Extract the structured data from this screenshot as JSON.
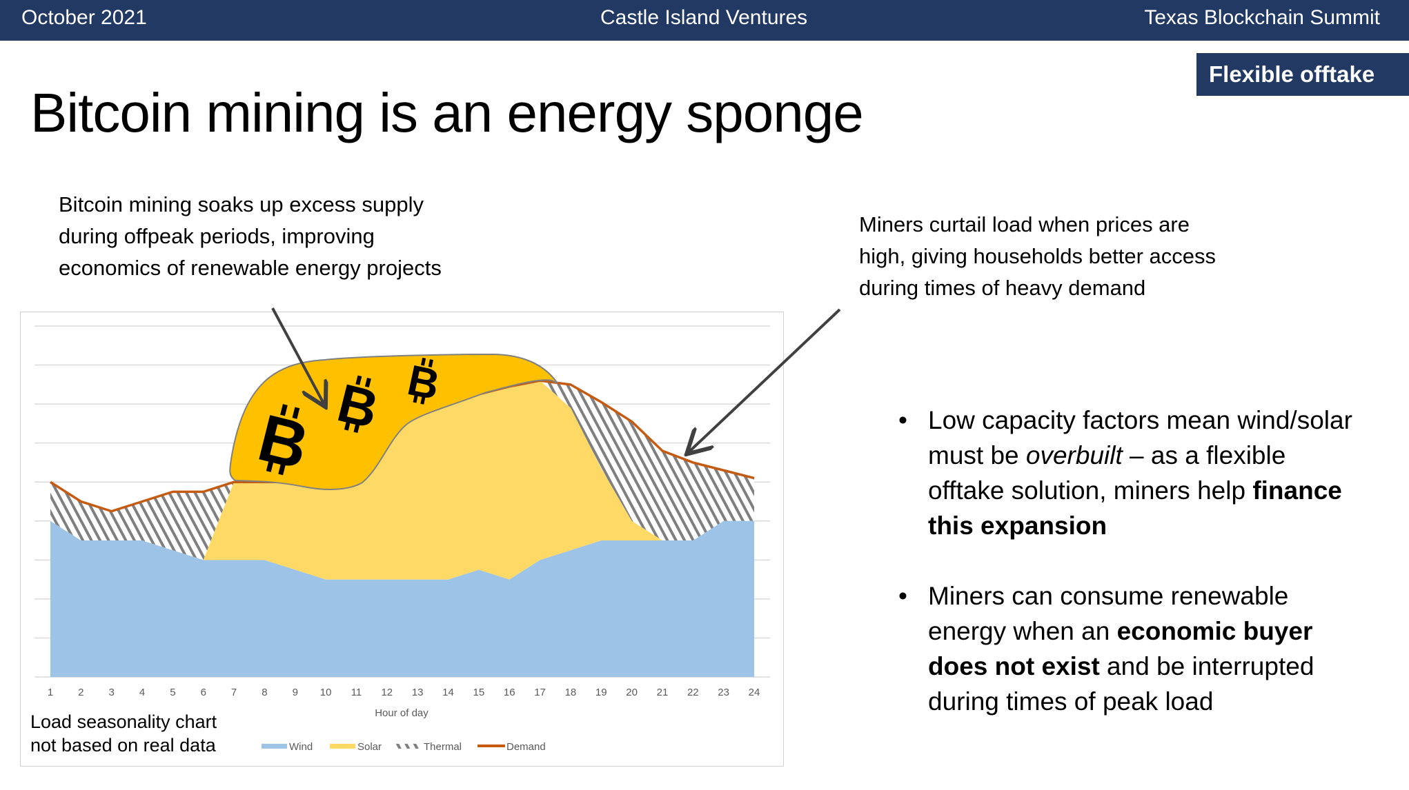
{
  "header": {
    "date": "October 2021",
    "company": "Castle Island Ventures",
    "event": "Texas Blockchain Summit"
  },
  "badge": "Flexible offtake",
  "title": "Bitcoin mining is an energy sponge",
  "left_note": "Bitcoin mining soaks up excess supply during offpeak periods, improving economics of renewable energy projects",
  "right_note": "Miners curtail load when prices are high, giving households better access during times of heavy demand",
  "bullets": [
    {
      "a": "Low capacity factors mean wind/solar must be ",
      "b": "overbuilt",
      "c": " – as a flexible offtake solution, miners help ",
      "d": "finance this expansion",
      "e": ""
    },
    {
      "a": "Miners can consume renewable energy when an ",
      "b": "economic buyer does not exist",
      "c": " and be interrupted during times of peak load"
    }
  ],
  "caption": [
    "Load seasonality chart",
    "not based on real data"
  ],
  "chart_data": {
    "type": "area",
    "stacked": true,
    "xlabel": "Hour of day",
    "ylabel": "",
    "x": [
      1,
      2,
      3,
      4,
      5,
      6,
      7,
      8,
      9,
      10,
      11,
      12,
      13,
      14,
      15,
      16,
      17,
      18,
      19,
      20,
      21,
      22,
      23,
      24
    ],
    "ylim": [
      0,
      9
    ],
    "y_tick_labels_shown": false,
    "grid": true,
    "legend": "bottom",
    "series": [
      {
        "name": "Wind",
        "kind": "area",
        "color": "#9dc3e6",
        "values": [
          4,
          3.5,
          3.5,
          3.5,
          3.25,
          3,
          3,
          3,
          2.75,
          2.5,
          2.5,
          2.5,
          2.5,
          2.5,
          2.75,
          2.5,
          3,
          3.25,
          3.5,
          3.5,
          3.5,
          3.5,
          4,
          4
        ]
      },
      {
        "name": "Solar",
        "kind": "area",
        "color": "#ffd966",
        "values": [
          0,
          0,
          0,
          0,
          0,
          0,
          2,
          2,
          2.25,
          2.6,
          3,
          3.9,
          4.3,
          4.55,
          4.5,
          4.95,
          4.6,
          3.65,
          1.85,
          0.5,
          0,
          0,
          0,
          0
        ]
      },
      {
        "name": "Thermal",
        "kind": "hatched-area",
        "color": "#7f7f7f"
      },
      {
        "name": "Demand",
        "kind": "line",
        "color": "#c55a11",
        "values": [
          5,
          4.5,
          4.25,
          4.5,
          4.75,
          4.75,
          5,
          5,
          5,
          5.1,
          5.5,
          6.4,
          6.8,
          7.05,
          7.25,
          7.45,
          7.6,
          7.5,
          7.05,
          6.55,
          5.8,
          5.5,
          5.3,
          5.1
        ]
      }
    ],
    "overlay": {
      "color": "#ffc000",
      "icon": "bitcoin-icon",
      "count": 3
    }
  }
}
